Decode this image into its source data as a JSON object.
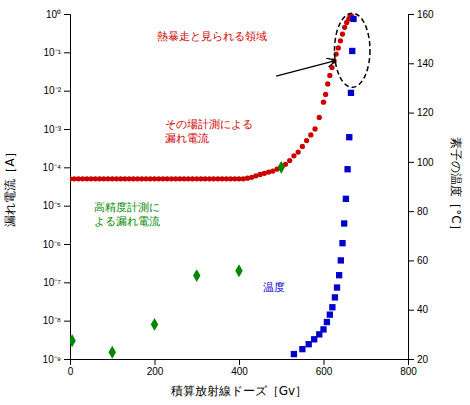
{
  "chart_data": {
    "type": "scatter",
    "xlabel": "積算放射線ドーズ［Gv］",
    "ylabel": "漏れ電流［A］",
    "y2label": "素子の温度［°C］",
    "log": "y",
    "xlim": [
      0,
      800
    ],
    "xticks": [
      0,
      200,
      400,
      600,
      800
    ],
    "ylim": [
      1e-09,
      1
    ],
    "yticks": [
      {
        "value": 1e-09,
        "label": "10⁻⁹"
      },
      {
        "value": 1e-08,
        "label": "10⁻⁸"
      },
      {
        "value": 1e-07,
        "label": "10⁻⁷"
      },
      {
        "value": 1e-06,
        "label": "10⁻⁶"
      },
      {
        "value": 1e-05,
        "label": "10⁻⁵"
      },
      {
        "value": 0.0001,
        "label": "10⁻⁴"
      },
      {
        "value": 0.001,
        "label": "10⁻³"
      },
      {
        "value": 0.01,
        "label": "10⁻²"
      },
      {
        "value": 0.1,
        "label": "10⁻¹"
      },
      {
        "value": 1,
        "label": "10⁰"
      }
    ],
    "y2lim": [
      20,
      160
    ],
    "y2ticks": [
      20,
      40,
      60,
      80,
      100,
      120,
      140,
      160
    ],
    "series": [
      {
        "color": "#cc0000",
        "marker": "circle",
        "x": [
          0,
          10,
          20,
          30,
          40,
          50,
          60,
          70,
          80,
          90,
          100,
          110,
          120,
          130,
          140,
          150,
          160,
          170,
          180,
          190,
          200,
          210,
          220,
          230,
          240,
          250,
          260,
          270,
          280,
          290,
          300,
          310,
          320,
          330,
          340,
          350,
          360,
          370,
          380,
          390,
          400,
          410,
          420,
          430,
          440,
          450,
          460,
          470,
          480,
          490,
          500,
          510,
          520,
          530,
          540,
          550,
          560,
          570,
          580,
          590,
          600,
          605,
          610,
          615,
          620,
          625,
          630,
          635,
          640,
          645,
          650,
          655,
          660,
          663,
          666
        ],
        "values": [
          5e-05,
          5e-05,
          5e-05,
          5e-05,
          5e-05,
          5e-05,
          5e-05,
          5e-05,
          5e-05,
          5e-05,
          5e-05,
          5e-05,
          5e-05,
          5e-05,
          5e-05,
          5e-05,
          5e-05,
          5e-05,
          5e-05,
          5e-05,
          5e-05,
          5e-05,
          5e-05,
          5e-05,
          5e-05,
          5e-05,
          5e-05,
          5e-05,
          5e-05,
          5e-05,
          5e-05,
          5e-05,
          5e-05,
          5e-05,
          5e-05,
          5e-05,
          5e-05,
          5e-05,
          5e-05,
          5e-05,
          5e-05,
          5e-05,
          5.2e-05,
          5.5e-05,
          6e-05,
          6.5e-05,
          7e-05,
          7.5e-05,
          8e-05,
          9e-05,
          0.0001,
          0.00012,
          0.00015,
          0.0002,
          0.00025,
          0.00035,
          0.0005,
          0.0007,
          0.001,
          0.002,
          0.005,
          0.008,
          0.015,
          0.025,
          0.04,
          0.06,
          0.09,
          0.13,
          0.2,
          0.3,
          0.45,
          0.6,
          0.75,
          0.9,
          0.98
        ]
      },
      {
        "color": "#008800",
        "marker": "diamond",
        "x": [
          5,
          100,
          200,
          300,
          400,
          500
        ],
        "values": [
          3e-09,
          1.5e-09,
          8e-09,
          1.5e-07,
          2e-07,
          0.0001
        ]
      },
      {
        "color": "#0000cc",
        "marker": "square",
        "axis": "y2",
        "x": [
          530,
          550,
          565,
          578,
          590,
          600,
          608,
          615,
          621,
          627,
          632,
          637,
          641,
          645,
          649,
          653,
          657,
          661,
          665,
          668,
          671
        ],
        "values": [
          22,
          24,
          26,
          28,
          30,
          32,
          35,
          38,
          41,
          45,
          49,
          54,
          60,
          67,
          75,
          85,
          97,
          110,
          128,
          145,
          158
        ]
      }
    ],
    "annotations": [
      {
        "text": "熱暴走と見られる領域",
        "color": "#cc0000"
      },
      {
        "text": "その場計測による\n漏れ電流",
        "color": "#cc0000"
      },
      {
        "text": "高精度計測に\nよる漏れ電流",
        "color": "#008800"
      },
      {
        "text": "温度",
        "color": "#0000cc"
      }
    ]
  }
}
